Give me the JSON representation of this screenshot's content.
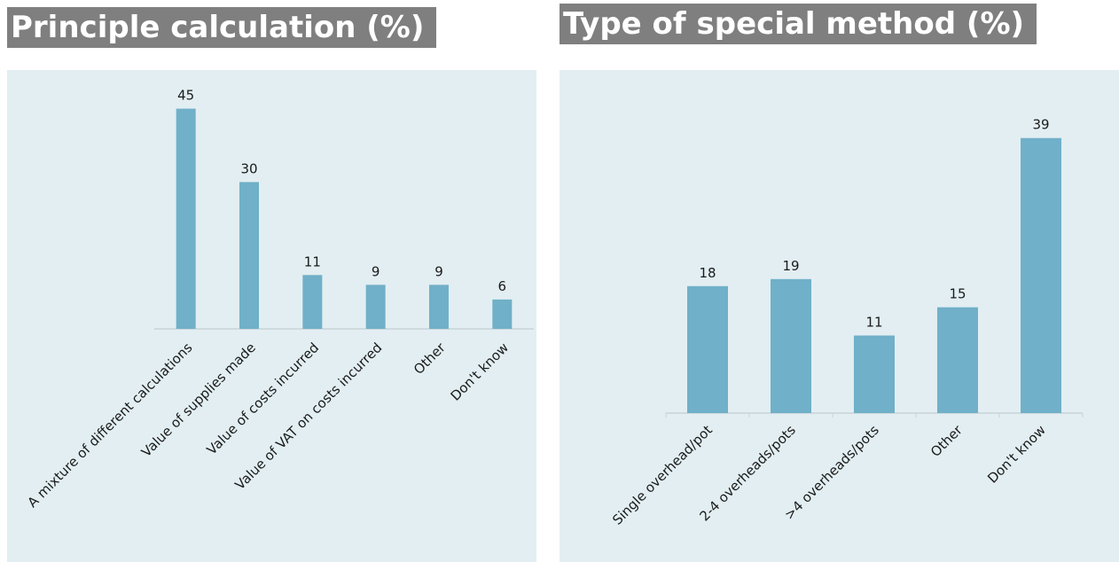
{
  "colors": {
    "bar": "#70b0c8",
    "panel": "#e2eef2",
    "axis": "#c8d4d8",
    "text": "#1a1a1a",
    "title_bg": "#7f7f7f"
  },
  "chart_data": [
    {
      "type": "bar",
      "title": "Principle calculation (%)",
      "xlabel": "",
      "ylabel": "",
      "categories": [
        "A mixture of different calculations",
        "Value of supplies made",
        "Value of costs incurred",
        "Value of VAT on costs incurred",
        "Other",
        "Don't know"
      ],
      "values": [
        45,
        30,
        11,
        9,
        9,
        6
      ],
      "ylim": [
        0,
        50
      ],
      "grid": false,
      "data_labels": true
    },
    {
      "type": "bar",
      "title": "Type of special method (%)",
      "xlabel": "",
      "ylabel": "",
      "categories": [
        "Single overhead/pot",
        "2-4 overheads/pots",
        ">4 overheads/pots",
        "Other",
        "Don't know"
      ],
      "values": [
        18,
        19,
        11,
        15,
        39
      ],
      "ylim": [
        0,
        45
      ],
      "grid": false,
      "data_labels": true
    }
  ]
}
